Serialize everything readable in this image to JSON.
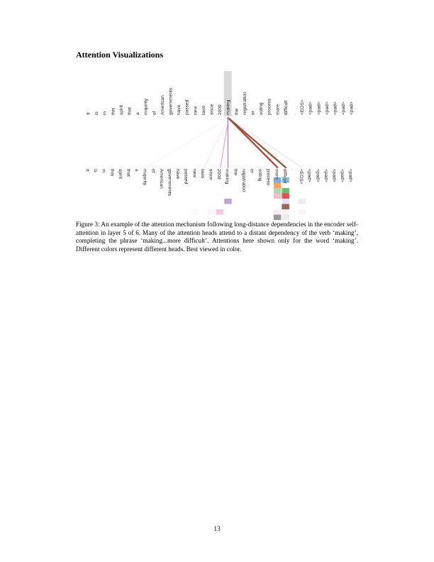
{
  "section_title": "Attention Visualizations",
  "figure": {
    "tokens": [
      "It",
      "is",
      "in",
      "this",
      "spirit",
      "that",
      "a",
      "majority",
      "of",
      "American",
      "governments",
      "have",
      "passed",
      "new",
      "laws",
      "since",
      "2009",
      "making",
      "the",
      "registration",
      "or",
      "voting",
      "process",
      "more",
      "difficult",
      ".",
      "<EOS>",
      "<pad>",
      "<pad>",
      "<pad>",
      "<pad>",
      "<pad>",
      "<pad>"
    ],
    "focus_token": "making",
    "head_colors": [
      "#1f77b4",
      "#ff7f0e",
      "#2ca02c",
      "#d62728",
      "#9467bd",
      "#8c564b",
      "#e377c2",
      "#7f7f7f"
    ],
    "attention_links": [
      {
        "target": "more",
        "head": 5,
        "weight": 0.9
      },
      {
        "target": "more",
        "head": 3,
        "weight": 0.6
      },
      {
        "target": "difficult",
        "head": 5,
        "weight": 0.9
      },
      {
        "target": "difficult",
        "head": 3,
        "weight": 0.5
      },
      {
        "target": "difficult",
        "head": 2,
        "weight": 0.4
      },
      {
        "target": "making",
        "head": 4,
        "weight": 0.6
      },
      {
        "target": "2009",
        "head": 6,
        "weight": 0.5
      },
      {
        "target": "<EOS>",
        "head": 4,
        "weight": 0.15
      },
      {
        "target": "laws",
        "head": 6,
        "weight": 0.15
      },
      {
        "target": "majority",
        "head": 6,
        "weight": 0.05
      }
    ],
    "heatmap_cells": [
      {
        "token": "more",
        "head": 0,
        "weight": 0.6
      },
      {
        "token": "more",
        "head": 1,
        "weight": 0.7
      },
      {
        "token": "more",
        "head": 2,
        "weight": 0.4
      },
      {
        "token": "more",
        "head": 3,
        "weight": 0.3
      },
      {
        "token": "more",
        "head": 6,
        "weight": 0.15
      },
      {
        "token": "more",
        "head": 7,
        "weight": 0.8
      },
      {
        "token": "difficult",
        "head": 0,
        "weight": 0.5
      },
      {
        "token": "difficult",
        "head": 2,
        "weight": 0.7
      },
      {
        "token": "difficult",
        "head": 3,
        "weight": 0.8
      },
      {
        "token": "difficult",
        "head": 4,
        "weight": 0.2
      },
      {
        "token": "difficult",
        "head": 5,
        "weight": 0.9
      },
      {
        "token": "difficult",
        "head": 6,
        "weight": 0.1
      },
      {
        "token": "difficult",
        "head": 7,
        "weight": 0.15
      },
      {
        "token": "making",
        "head": 4,
        "weight": 0.6
      },
      {
        "token": "2009",
        "head": 6,
        "weight": 0.4
      },
      {
        "token": "since",
        "head": 6,
        "weight": 0.08
      },
      {
        "token": "<EOS>",
        "head": 4,
        "weight": 0.15
      },
      {
        "token": "<EOS>",
        "head": 6,
        "weight": 0.08
      },
      {
        "token": "new",
        "head": 6,
        "weight": 0.06
      }
    ]
  },
  "caption": "Figure 3: An example of the attention mechanism following long-distance dependencies in the encoder self-attention in layer 5 of 6. Many of the attention heads attend to a distant dependency of the verb ‘making’, completing the phrase ‘making...more difficult’. Attentions here shown only for the word ‘making’. Different colors represent different heads. Best viewed in color.",
  "page_number": "13"
}
